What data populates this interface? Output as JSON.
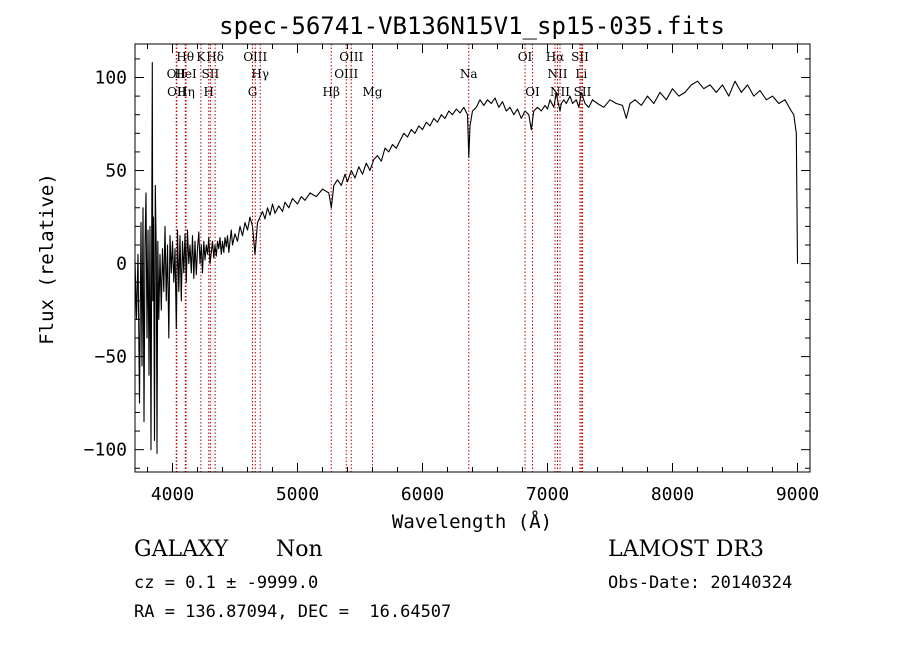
{
  "chart_data": {
    "type": "line",
    "title": "spec-56741-VB136N15V1_sp15-035.fits",
    "xlabel": "Wavelength (Å)",
    "ylabel": "Flux (relative)",
    "xlim": [
      3700,
      9100
    ],
    "ylim": [
      -112,
      118
    ],
    "x_ticks": [
      4000,
      5000,
      6000,
      7000,
      8000,
      9000
    ],
    "y_ticks": [
      -100,
      -50,
      0,
      50,
      100
    ],
    "series": [
      {
        "name": "flux",
        "points": [
          [
            3700,
            2
          ],
          [
            3712,
            -30
          ],
          [
            3724,
            5
          ],
          [
            3736,
            -75
          ],
          [
            3748,
            22
          ],
          [
            3756,
            -55
          ],
          [
            3764,
            30
          ],
          [
            3772,
            -85
          ],
          [
            3780,
            10
          ],
          [
            3788,
            38
          ],
          [
            3796,
            -40
          ],
          [
            3804,
            18
          ],
          [
            3812,
            -60
          ],
          [
            3820,
            20
          ],
          [
            3828,
            -100
          ],
          [
            3834,
            28
          ],
          [
            3838,
            108
          ],
          [
            3842,
            -20
          ],
          [
            3848,
            25
          ],
          [
            3856,
            -95
          ],
          [
            3862,
            42
          ],
          [
            3870,
            5
          ],
          [
            3876,
            -102
          ],
          [
            3882,
            12
          ],
          [
            3890,
            -30
          ],
          [
            3900,
            5
          ],
          [
            3910,
            -25
          ],
          [
            3920,
            8
          ],
          [
            3930,
            -15
          ],
          [
            3940,
            20
          ],
          [
            3950,
            -20
          ],
          [
            3960,
            10
          ],
          [
            3970,
            -40
          ],
          [
            3980,
            15
          ],
          [
            3990,
            -5
          ],
          [
            4000,
            12
          ],
          [
            4010,
            -10
          ],
          [
            4020,
            8
          ],
          [
            4030,
            -35
          ],
          [
            4040,
            18
          ],
          [
            4050,
            -15
          ],
          [
            4060,
            15
          ],
          [
            4070,
            -20
          ],
          [
            4080,
            12
          ],
          [
            4090,
            -5
          ],
          [
            4100,
            16
          ],
          [
            4110,
            -10
          ],
          [
            4120,
            18
          ],
          [
            4130,
            0
          ],
          [
            4140,
            10
          ],
          [
            4150,
            -5
          ],
          [
            4160,
            15
          ],
          [
            4170,
            -8
          ],
          [
            4180,
            12
          ],
          [
            4190,
            -6
          ],
          [
            4200,
            8
          ],
          [
            4210,
            17
          ],
          [
            4220,
            0
          ],
          [
            4230,
            10
          ],
          [
            4240,
            -5
          ],
          [
            4250,
            12
          ],
          [
            4260,
            2
          ],
          [
            4270,
            10
          ],
          [
            4280,
            5
          ],
          [
            4290,
            14
          ],
          [
            4300,
            0
          ],
          [
            4310,
            6
          ],
          [
            4320,
            12
          ],
          [
            4330,
            3
          ],
          [
            4340,
            10
          ],
          [
            4350,
            4
          ],
          [
            4360,
            12
          ],
          [
            4370,
            8
          ],
          [
            4380,
            14
          ],
          [
            4390,
            5
          ],
          [
            4400,
            12
          ],
          [
            4410,
            6
          ],
          [
            4420,
            14
          ],
          [
            4430,
            9
          ],
          [
            4440,
            15
          ],
          [
            4450,
            6
          ],
          [
            4460,
            12
          ],
          [
            4470,
            18
          ],
          [
            4480,
            10
          ],
          [
            4500,
            16
          ],
          [
            4520,
            12
          ],
          [
            4540,
            20
          ],
          [
            4560,
            15
          ],
          [
            4580,
            22
          ],
          [
            4600,
            18
          ],
          [
            4620,
            25
          ],
          [
            4640,
            20
          ],
          [
            4660,
            5
          ],
          [
            4680,
            22
          ],
          [
            4700,
            25
          ],
          [
            4720,
            28
          ],
          [
            4740,
            24
          ],
          [
            4760,
            30
          ],
          [
            4780,
            26
          ],
          [
            4800,
            32
          ],
          [
            4820,
            27
          ],
          [
            4850,
            31
          ],
          [
            4880,
            28
          ],
          [
            4900,
            33
          ],
          [
            4930,
            30
          ],
          [
            4960,
            35
          ],
          [
            5000,
            32
          ],
          [
            5030,
            36
          ],
          [
            5060,
            34
          ],
          [
            5100,
            38
          ],
          [
            5150,
            36
          ],
          [
            5200,
            40
          ],
          [
            5250,
            38
          ],
          [
            5270,
            30
          ],
          [
            5290,
            42
          ],
          [
            5320,
            45
          ],
          [
            5350,
            42
          ],
          [
            5380,
            48
          ],
          [
            5400,
            44
          ],
          [
            5430,
            50
          ],
          [
            5460,
            46
          ],
          [
            5490,
            52
          ],
          [
            5520,
            48
          ],
          [
            5550,
            54
          ],
          [
            5580,
            50
          ],
          [
            5610,
            56
          ],
          [
            5640,
            58
          ],
          [
            5670,
            55
          ],
          [
            5700,
            62
          ],
          [
            5730,
            60
          ],
          [
            5760,
            64
          ],
          [
            5790,
            62
          ],
          [
            5820,
            66
          ],
          [
            5850,
            70
          ],
          [
            5880,
            68
          ],
          [
            5910,
            72
          ],
          [
            5940,
            70
          ],
          [
            5970,
            74
          ],
          [
            6000,
            72
          ],
          [
            6030,
            76
          ],
          [
            6060,
            74
          ],
          [
            6090,
            78
          ],
          [
            6120,
            76
          ],
          [
            6150,
            80
          ],
          [
            6180,
            78
          ],
          [
            6210,
            82
          ],
          [
            6240,
            80
          ],
          [
            6270,
            83
          ],
          [
            6300,
            81
          ],
          [
            6330,
            84
          ],
          [
            6360,
            80
          ],
          [
            6370,
            57
          ],
          [
            6380,
            74
          ],
          [
            6400,
            82
          ],
          [
            6430,
            84
          ],
          [
            6460,
            88
          ],
          [
            6490,
            85
          ],
          [
            6520,
            88
          ],
          [
            6550,
            86
          ],
          [
            6580,
            89
          ],
          [
            6610,
            84
          ],
          [
            6640,
            87
          ],
          [
            6670,
            82
          ],
          [
            6700,
            84
          ],
          [
            6730,
            80
          ],
          [
            6760,
            83
          ],
          [
            6790,
            78
          ],
          [
            6820,
            82
          ],
          [
            6850,
            80
          ],
          [
            6870,
            72
          ],
          [
            6890,
            82
          ],
          [
            6920,
            84
          ],
          [
            6950,
            82
          ],
          [
            6980,
            85
          ],
          [
            7000,
            83
          ],
          [
            7020,
            88
          ],
          [
            7050,
            84
          ],
          [
            7070,
            92
          ],
          [
            7080,
            88
          ],
          [
            7100,
            82
          ],
          [
            7110,
            86
          ],
          [
            7130,
            88
          ],
          [
            7150,
            86
          ],
          [
            7180,
            90
          ],
          [
            7200,
            86
          ],
          [
            7230,
            88
          ],
          [
            7250,
            84
          ],
          [
            7270,
            92
          ],
          [
            7300,
            86
          ],
          [
            7330,
            84
          ],
          [
            7360,
            88
          ],
          [
            7400,
            86
          ],
          [
            7450,
            84
          ],
          [
            7500,
            88
          ],
          [
            7550,
            86
          ],
          [
            7600,
            85
          ],
          [
            7630,
            78
          ],
          [
            7660,
            86
          ],
          [
            7700,
            88
          ],
          [
            7750,
            85
          ],
          [
            7800,
            90
          ],
          [
            7850,
            86
          ],
          [
            7900,
            92
          ],
          [
            7950,
            88
          ],
          [
            8000,
            94
          ],
          [
            8050,
            90
          ],
          [
            8100,
            92
          ],
          [
            8150,
            96
          ],
          [
            8200,
            98
          ],
          [
            8250,
            94
          ],
          [
            8300,
            96
          ],
          [
            8350,
            92
          ],
          [
            8400,
            96
          ],
          [
            8450,
            90
          ],
          [
            8500,
            98
          ],
          [
            8550,
            92
          ],
          [
            8600,
            96
          ],
          [
            8650,
            90
          ],
          [
            8700,
            93
          ],
          [
            8750,
            88
          ],
          [
            8800,
            90
          ],
          [
            8850,
            86
          ],
          [
            8900,
            88
          ],
          [
            8950,
            82
          ],
          [
            8970,
            80
          ],
          [
            8990,
            70
          ],
          [
            9000,
            0
          ]
        ]
      }
    ],
    "lines": [
      {
        "wavelength": 4030,
        "label": "OII",
        "row": 1
      },
      {
        "wavelength": 4034,
        "label": "OII",
        "row": 2
      },
      {
        "wavelength": 4102,
        "label": "Hθ",
        "row": 0
      },
      {
        "wavelength": 4105,
        "label": "HeI",
        "row": 1
      },
      {
        "wavelength": 4108,
        "label": "Hη",
        "row": 2
      },
      {
        "wavelength": 4227,
        "label": "K",
        "row": 0
      },
      {
        "wavelength": 4290,
        "label": "H",
        "row": 2
      },
      {
        "wavelength": 4303,
        "label": "SII",
        "row": 1
      },
      {
        "wavelength": 4341,
        "label": "Hδ",
        "row": 0
      },
      {
        "wavelength": 4640,
        "label": "G",
        "row": 2
      },
      {
        "wavelength": 4662,
        "label": "OIII",
        "row": 0
      },
      {
        "wavelength": 4702,
        "label": "Hγ",
        "row": 1
      },
      {
        "wavelength": 5270,
        "label": "Hβ",
        "row": 2
      },
      {
        "wavelength": 5390,
        "label": "OIII",
        "row": 1
      },
      {
        "wavelength": 5430,
        "label": "OIII",
        "row": 0
      },
      {
        "wavelength": 5600,
        "label": "Mg",
        "row": 2
      },
      {
        "wavelength": 6370,
        "label": "Na",
        "row": 1
      },
      {
        "wavelength": 6820,
        "label": "OI",
        "row": 0
      },
      {
        "wavelength": 6880,
        "label": "OI",
        "row": 2
      },
      {
        "wavelength": 7060,
        "label": "Hα",
        "row": 0
      },
      {
        "wavelength": 7080,
        "label": "NII",
        "row": 1
      },
      {
        "wavelength": 7100,
        "label": "NII",
        "row": 2
      },
      {
        "wavelength": 7260,
        "label": "SII",
        "row": 0
      },
      {
        "wavelength": 7270,
        "label": "Li",
        "row": 1
      },
      {
        "wavelength": 7280,
        "label": "SII",
        "row": 2
      }
    ]
  },
  "info": {
    "class_label": "GALAXY",
    "subclass_label": "Non",
    "survey_label": "LAMOST DR3",
    "cz_line": "cz = 0.1 ± -9999.0",
    "obs_date_line": "Obs-Date: 20140324",
    "coords_line": "RA = 136.87094, DEC =  16.64507"
  },
  "colors": {
    "spectrum": "#000000",
    "line_marker": "#c00000",
    "axes": "#000000",
    "background": "#ffffff"
  }
}
